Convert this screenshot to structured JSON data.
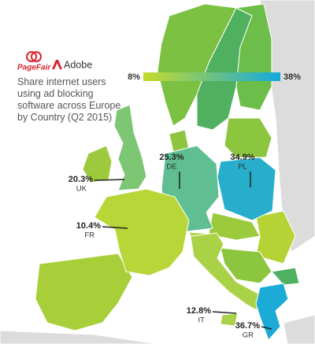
{
  "chart_data": {
    "type": "choropleth",
    "subtitle": "Share internet users using ad blocking software across Europe by Country (Q2 2015)",
    "sources": [
      "PageFair",
      "Adobe"
    ],
    "categories": [
      "UK",
      "DE",
      "PL",
      "FR",
      "IT",
      "GR"
    ],
    "values": [
      20.3,
      25.3,
      34.9,
      10.4,
      12.8,
      36.7
    ],
    "value_labels": [
      "20.3%",
      "25.3%",
      "34.9%",
      "10.4%",
      "12.8%",
      "36.7%"
    ],
    "colors": [
      "#c6da2a",
      "#14a9de"
    ],
    "colorbar_ticks": [
      {
        "value": 8,
        "label": "8%"
      },
      {
        "value": 38,
        "label": "38%"
      }
    ]
  }
}
